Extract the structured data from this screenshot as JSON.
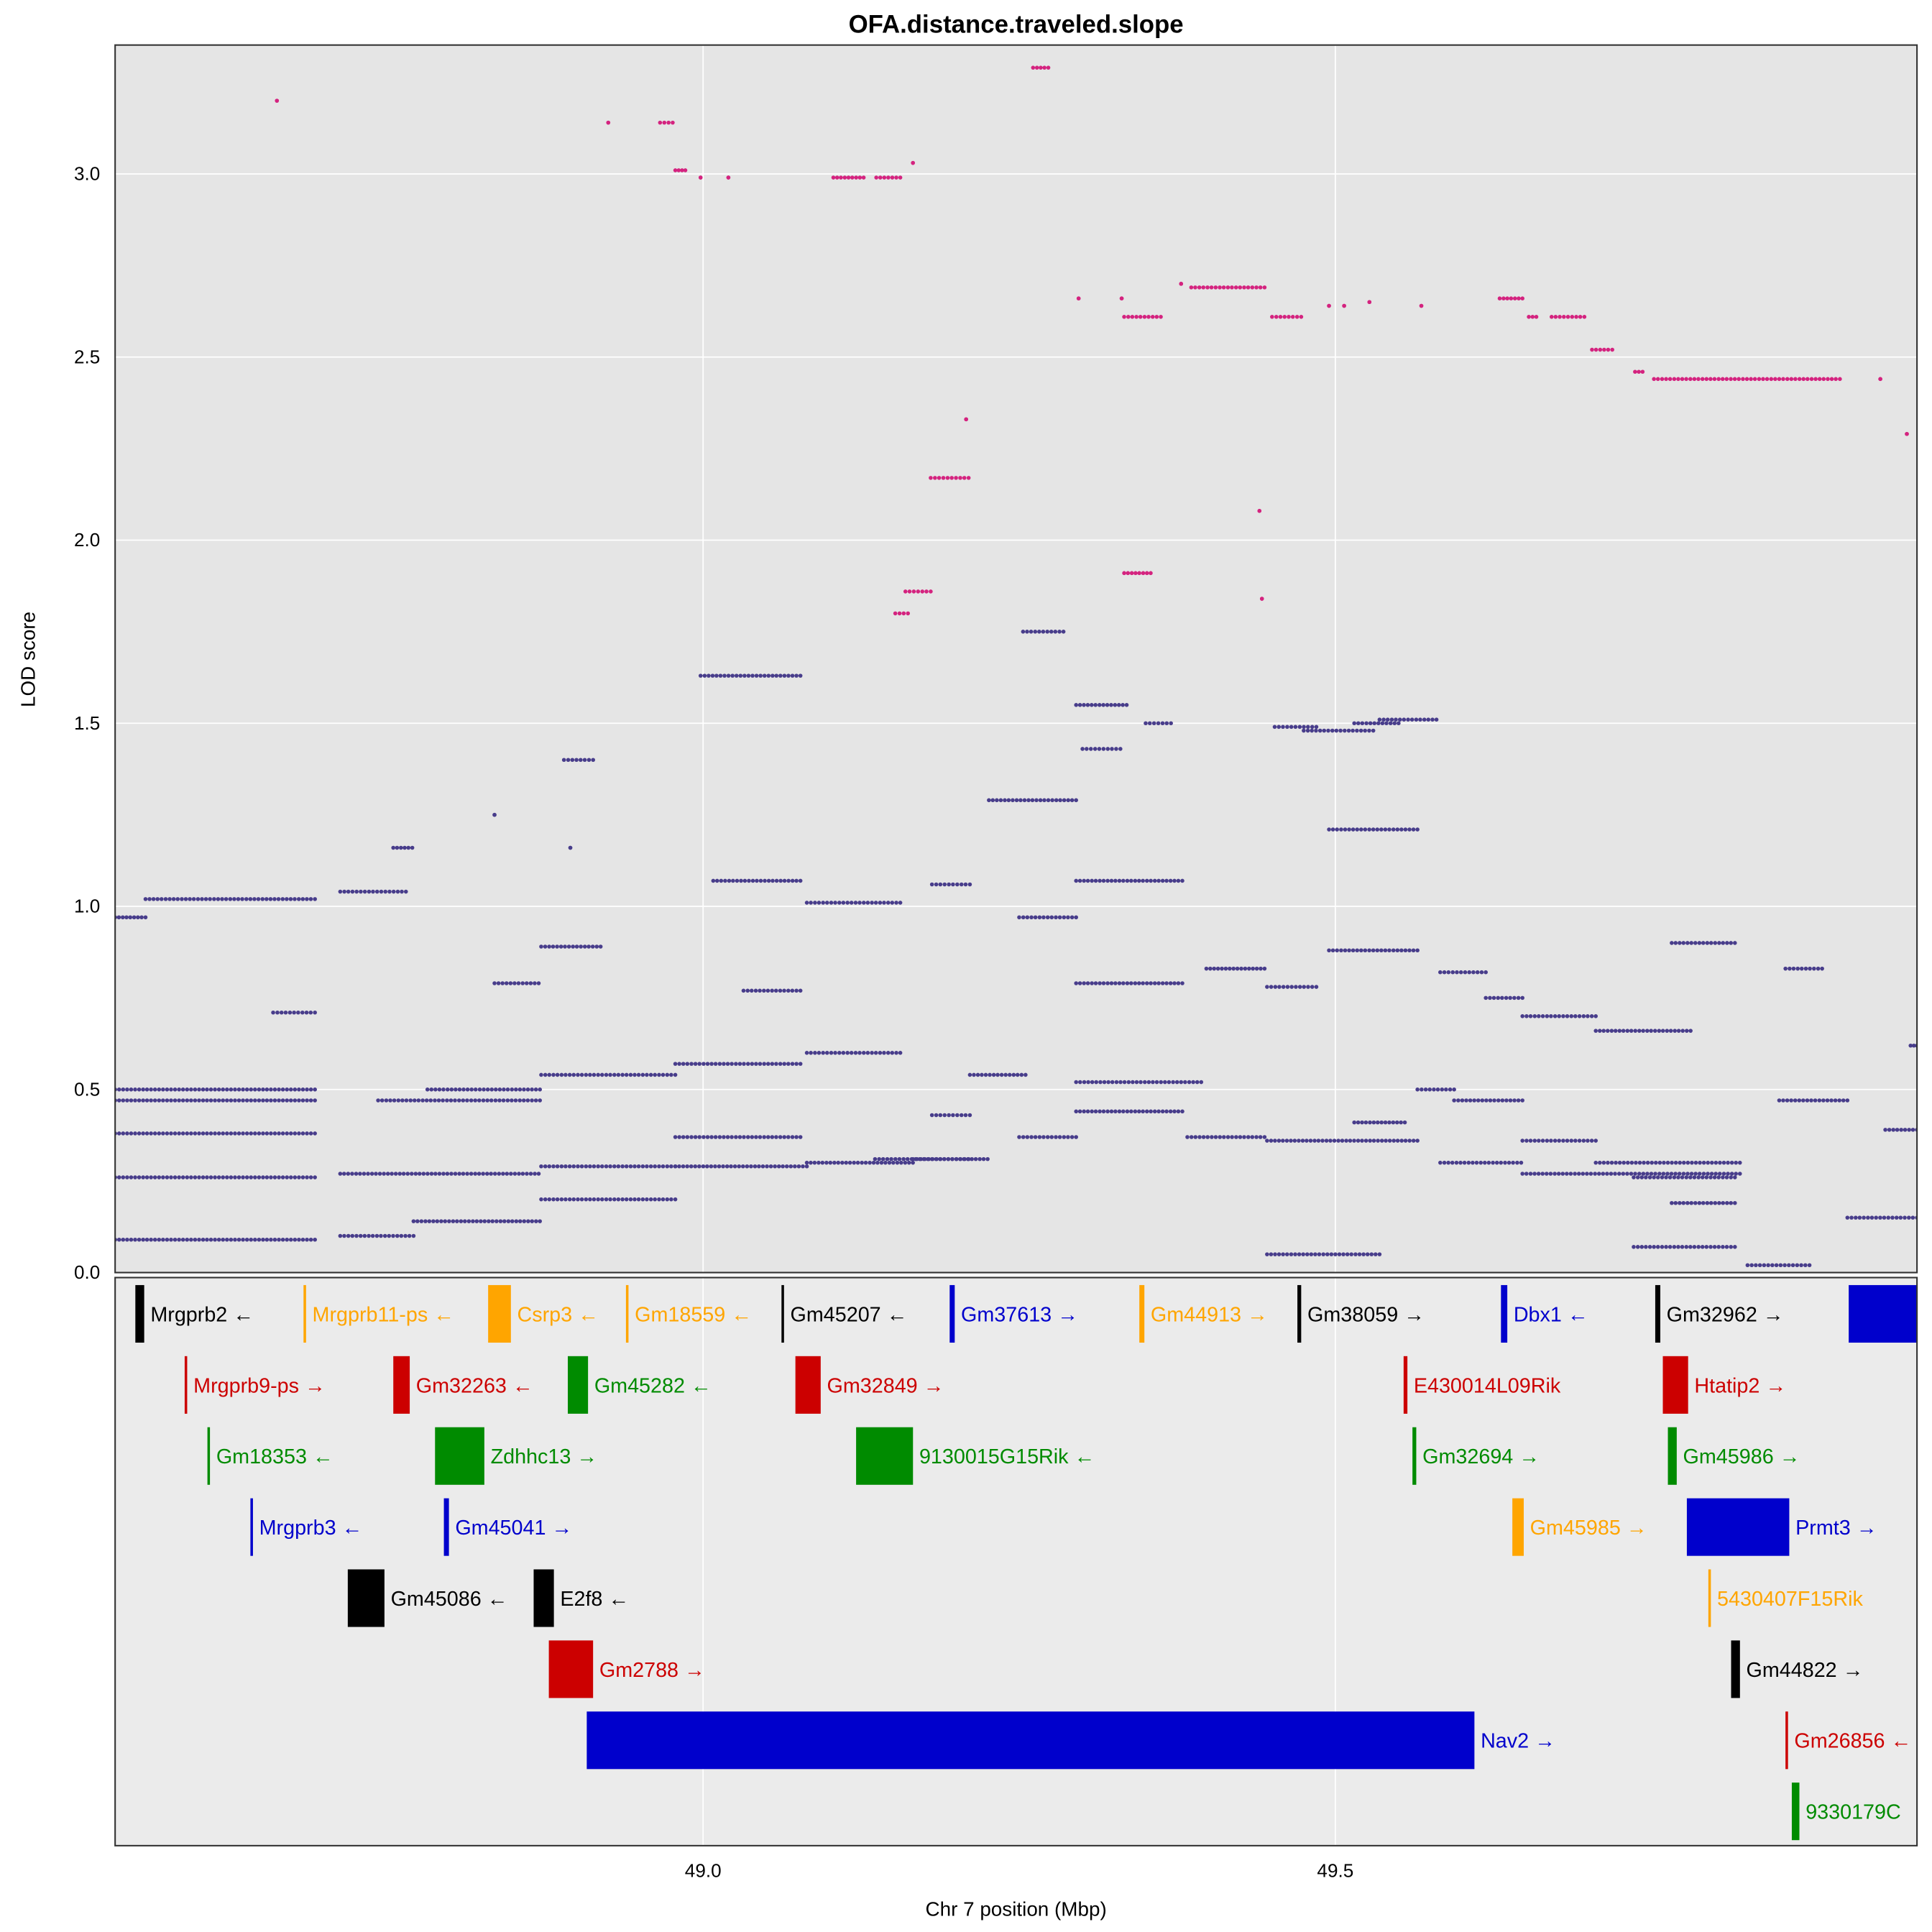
{
  "chart_data": {
    "type": "scatter",
    "title": "OFA.distance.traveled.slope",
    "xlabel": "Chr 7 position (Mbp)",
    "ylabel": "LOD score",
    "xlim": [
      48.535,
      49.96
    ],
    "ylim": [
      0,
      3.352
    ],
    "x_ticks": [
      {
        "value": 49.0,
        "label": "49.0"
      },
      {
        "value": 49.5,
        "label": "49.5"
      }
    ],
    "y_ticks": [
      {
        "value": 0.0,
        "label": "0.0"
      },
      {
        "value": 0.5,
        "label": "0.5"
      },
      {
        "value": 1.0,
        "label": "1.0"
      },
      {
        "value": 1.5,
        "label": "1.5"
      },
      {
        "value": 2.0,
        "label": "2.0"
      },
      {
        "value": 2.5,
        "label": "2.5"
      },
      {
        "value": 3.0,
        "label": "3.0"
      }
    ],
    "grid": true,
    "colors": {
      "panel": "#E5E5E5",
      "gene_panel": "#EBEBEB",
      "grid": "#FFFFFF",
      "low_points": "#483D8B",
      "high_points": "#D4237F"
    },
    "series": [
      {
        "name": "high-LOD SNPs",
        "color": "#D4237F",
        "runs": [
          [
            48.663,
            48.663,
            3.2
          ],
          [
            48.925,
            48.925,
            3.14
          ],
          [
            48.966,
            48.976,
            3.14
          ],
          [
            48.978,
            48.986,
            3.01
          ],
          [
            48.998,
            48.998,
            2.99
          ],
          [
            49.02,
            49.02,
            2.99
          ],
          [
            49.103,
            49.127,
            2.99
          ],
          [
            49.137,
            49.156,
            2.99
          ],
          [
            49.166,
            49.166,
            3.03
          ],
          [
            49.261,
            49.273,
            3.29
          ],
          [
            49.297,
            49.297,
            2.66
          ],
          [
            49.331,
            49.331,
            2.66
          ],
          [
            49.333,
            49.362,
            2.61
          ],
          [
            49.378,
            49.378,
            2.7
          ],
          [
            49.386,
            49.444,
            2.69
          ],
          [
            49.45,
            49.473,
            2.61
          ],
          [
            49.495,
            49.495,
            2.64
          ],
          [
            49.507,
            49.507,
            2.64
          ],
          [
            49.527,
            49.527,
            2.65
          ],
          [
            49.568,
            49.568,
            2.64
          ],
          [
            49.63,
            49.648,
            2.66
          ],
          [
            49.653,
            49.659,
            2.61
          ],
          [
            49.671,
            49.697,
            2.61
          ],
          [
            49.703,
            49.719,
            2.52
          ],
          [
            49.737,
            49.743,
            2.46
          ],
          [
            49.752,
            49.899,
            2.44
          ],
          [
            49.931,
            49.931,
            2.44
          ],
          [
            49.952,
            49.952,
            2.29
          ],
          [
            49.208,
            49.208,
            2.33
          ],
          [
            49.18,
            49.21,
            2.17
          ],
          [
            49.16,
            49.18,
            1.86
          ],
          [
            49.152,
            49.162,
            1.8
          ],
          [
            49.333,
            49.354,
            1.91
          ],
          [
            49.44,
            49.44,
            2.08
          ],
          [
            49.442,
            49.442,
            1.84
          ]
        ]
      },
      {
        "name": "other SNPs",
        "color": "#483D8B",
        "runs": [
          [
            48.535,
            48.559,
            0.97
          ],
          [
            48.559,
            48.693,
            1.02
          ],
          [
            48.535,
            48.693,
            0.26
          ],
          [
            48.535,
            48.693,
            0.09
          ],
          [
            48.535,
            48.693,
            0.38
          ],
          [
            48.535,
            48.693,
            0.5
          ],
          [
            48.535,
            48.693,
            0.47
          ],
          [
            48.66,
            48.693,
            0.71
          ],
          [
            48.713,
            48.765,
            1.04
          ],
          [
            48.713,
            48.87,
            0.27
          ],
          [
            48.713,
            48.771,
            0.1
          ],
          [
            48.771,
            48.871,
            0.14
          ],
          [
            48.743,
            48.871,
            0.47
          ],
          [
            48.782,
            48.871,
            0.5
          ],
          [
            48.872,
            48.978,
            0.2
          ],
          [
            48.872,
            48.978,
            0.29
          ],
          [
            48.872,
            48.978,
            0.54
          ],
          [
            48.872,
            48.919,
            0.89
          ],
          [
            48.978,
            49.082,
            0.29
          ],
          [
            48.978,
            49.077,
            0.37
          ],
          [
            48.978,
            49.077,
            0.57
          ],
          [
            48.998,
            49.077,
            1.63
          ],
          [
            49.008,
            49.077,
            1.07
          ],
          [
            49.082,
            49.166,
            0.3
          ],
          [
            49.082,
            49.156,
            0.6
          ],
          [
            49.082,
            49.156,
            1.01
          ],
          [
            49.166,
            49.225,
            0.31
          ],
          [
            49.181,
            49.211,
            1.06
          ],
          [
            49.181,
            49.211,
            0.43
          ],
          [
            49.211,
            49.255,
            0.54
          ],
          [
            49.226,
            49.295,
            1.29
          ],
          [
            49.25,
            49.295,
            0.97
          ],
          [
            49.25,
            49.295,
            0.37
          ],
          [
            49.253,
            49.285,
            1.75
          ],
          [
            49.295,
            49.394,
            0.52
          ],
          [
            49.295,
            49.379,
            1.07
          ],
          [
            49.295,
            49.379,
            0.44
          ],
          [
            49.295,
            49.379,
            0.79
          ],
          [
            49.383,
            49.444,
            0.37
          ],
          [
            49.398,
            49.444,
            0.83
          ],
          [
            49.452,
            49.485,
            1.49
          ],
          [
            49.446,
            49.565,
            0.36
          ],
          [
            49.495,
            49.565,
            1.21
          ],
          [
            49.495,
            49.565,
            0.88
          ],
          [
            49.515,
            49.555,
            0.41
          ],
          [
            49.565,
            49.594,
            0.5
          ],
          [
            49.583,
            49.619,
            0.82
          ],
          [
            49.583,
            49.647,
            0.3
          ],
          [
            49.619,
            49.648,
            0.75
          ],
          [
            49.648,
            49.706,
            0.7
          ],
          [
            49.648,
            49.706,
            0.36
          ],
          [
            49.648,
            49.82,
            0.27
          ],
          [
            49.706,
            49.781,
            0.66
          ],
          [
            49.706,
            49.82,
            0.3
          ],
          [
            49.766,
            49.816,
            0.9
          ],
          [
            49.766,
            49.816,
            0.19
          ],
          [
            49.736,
            49.816,
            0.07
          ],
          [
            49.826,
            49.875,
            0.02
          ],
          [
            49.851,
            49.905,
            0.47
          ],
          [
            49.856,
            49.885,
            0.83
          ],
          [
            49.905,
            49.96,
            0.15
          ],
          [
            49.935,
            49.96,
            0.39
          ],
          [
            49.955,
            49.96,
            0.62
          ],
          [
            49.446,
            49.485,
            0.78
          ],
          [
            49.446,
            49.535,
            0.05
          ],
          [
            49.594,
            49.648,
            0.47
          ],
          [
            49.515,
            49.55,
            1.5
          ],
          [
            49.535,
            49.58,
            1.51
          ],
          [
            49.475,
            49.53,
            1.48
          ],
          [
            49.295,
            49.335,
            1.55
          ],
          [
            49.35,
            49.37,
            1.5
          ],
          [
            48.835,
            48.87,
            0.79
          ],
          [
            49.032,
            49.077,
            0.77
          ],
          [
            49.136,
            49.21,
            0.31
          ],
          [
            49.736,
            49.816,
            0.26
          ],
          [
            48.89,
            48.913,
            1.4
          ],
          [
            48.755,
            48.77,
            1.16
          ],
          [
            48.835,
            48.835,
            1.25
          ],
          [
            48.895,
            48.895,
            1.16
          ],
          [
            49.3,
            49.33,
            1.43
          ]
        ]
      }
    ]
  },
  "genes": {
    "colors": {
      "black": "#000000",
      "orange": "#FFA500",
      "red": "#CC0000",
      "green": "#008B00",
      "blue": "#0000CC"
    },
    "arrows": {
      "left": "←",
      "right": "→",
      "none": ""
    },
    "items": [
      {
        "name": "Mrgprb2",
        "start": 48.551,
        "end": 48.558,
        "row": 0,
        "color": "black",
        "strand": "left"
      },
      {
        "name": "Mrgprb11-ps",
        "start": 48.684,
        "end": 48.686,
        "row": 0,
        "color": "orange",
        "strand": "left"
      },
      {
        "name": "Csrp3",
        "start": 48.83,
        "end": 48.848,
        "row": 0,
        "color": "orange",
        "strand": "left"
      },
      {
        "name": "Gm18559",
        "start": 48.939,
        "end": 48.941,
        "row": 0,
        "color": "orange",
        "strand": "left"
      },
      {
        "name": "Gm45207",
        "start": 49.062,
        "end": 49.064,
        "row": 0,
        "color": "black",
        "strand": "left"
      },
      {
        "name": "Gm37613",
        "start": 49.195,
        "end": 49.199,
        "row": 0,
        "color": "blue",
        "strand": "right"
      },
      {
        "name": "Gm44913",
        "start": 49.345,
        "end": 49.349,
        "row": 0,
        "color": "orange",
        "strand": "right"
      },
      {
        "name": "Gm38059",
        "start": 49.47,
        "end": 49.473,
        "row": 0,
        "color": "black",
        "strand": "right"
      },
      {
        "name": "Dbx1",
        "start": 49.631,
        "end": 49.636,
        "row": 0,
        "color": "blue",
        "strand": "left"
      },
      {
        "name": "Gm32962",
        "start": 49.753,
        "end": 49.757,
        "row": 0,
        "color": "black",
        "strand": "right"
      },
      {
        "name": "",
        "start": 49.906,
        "end": 49.975,
        "row": 0,
        "color": "blue",
        "strand": "none"
      },
      {
        "name": "Mrgprb9-ps",
        "start": 48.59,
        "end": 48.592,
        "row": 1,
        "color": "red",
        "strand": "right"
      },
      {
        "name": "Gm32263",
        "start": 48.755,
        "end": 48.768,
        "row": 1,
        "color": "red",
        "strand": "left"
      },
      {
        "name": "Gm45282",
        "start": 48.893,
        "end": 48.909,
        "row": 1,
        "color": "green",
        "strand": "left"
      },
      {
        "name": "Gm32849",
        "start": 49.073,
        "end": 49.093,
        "row": 1,
        "color": "red",
        "strand": "right"
      },
      {
        "name": "E430014L09Rik",
        "start": 49.554,
        "end": 49.557,
        "row": 1,
        "color": "red",
        "strand": "none"
      },
      {
        "name": "Htatip2",
        "start": 49.759,
        "end": 49.779,
        "row": 1,
        "color": "red",
        "strand": "right"
      },
      {
        "name": "Gm18353",
        "start": 48.608,
        "end": 48.61,
        "row": 2,
        "color": "green",
        "strand": "left"
      },
      {
        "name": "Zdhhc13",
        "start": 48.788,
        "end": 48.827,
        "row": 2,
        "color": "green",
        "strand": "right"
      },
      {
        "name": "9130015G15Rik",
        "start": 49.121,
        "end": 49.166,
        "row": 2,
        "color": "green",
        "strand": "left"
      },
      {
        "name": "Gm32694",
        "start": 49.561,
        "end": 49.564,
        "row": 2,
        "color": "green",
        "strand": "right"
      },
      {
        "name": "Gm45986",
        "start": 49.763,
        "end": 49.77,
        "row": 2,
        "color": "green",
        "strand": "right"
      },
      {
        "name": "Mrgprb3",
        "start": 48.642,
        "end": 48.644,
        "row": 3,
        "color": "blue",
        "strand": "left"
      },
      {
        "name": "Gm45041",
        "start": 48.795,
        "end": 48.799,
        "row": 3,
        "color": "blue",
        "strand": "right"
      },
      {
        "name": "Gm45985",
        "start": 49.64,
        "end": 49.649,
        "row": 3,
        "color": "orange",
        "strand": "right"
      },
      {
        "name": "Prmt3",
        "start": 49.778,
        "end": 49.859,
        "row": 3,
        "color": "blue",
        "strand": "right"
      },
      {
        "name": "Gm45086",
        "start": 48.719,
        "end": 48.748,
        "row": 4,
        "color": "black",
        "strand": "left"
      },
      {
        "name": "E2f8",
        "start": 48.866,
        "end": 48.882,
        "row": 4,
        "color": "black",
        "strand": "left"
      },
      {
        "name": "5430407F15Rik",
        "start": 49.795,
        "end": 49.797,
        "row": 4,
        "color": "orange",
        "strand": "none"
      },
      {
        "name": "Gm2788",
        "start": 48.878,
        "end": 48.913,
        "row": 5,
        "color": "red",
        "strand": "right"
      },
      {
        "name": "Gm44822",
        "start": 49.813,
        "end": 49.82,
        "row": 5,
        "color": "black",
        "strand": "right"
      },
      {
        "name": "Nav2",
        "start": 48.908,
        "end": 49.61,
        "row": 6,
        "color": "blue",
        "strand": "right"
      },
      {
        "name": "Gm26856",
        "start": 49.856,
        "end": 49.858,
        "row": 6,
        "color": "red",
        "strand": "left"
      },
      {
        "name": "9330179C",
        "start": 49.861,
        "end": 49.867,
        "row": 7,
        "color": "green",
        "strand": "none"
      }
    ]
  }
}
